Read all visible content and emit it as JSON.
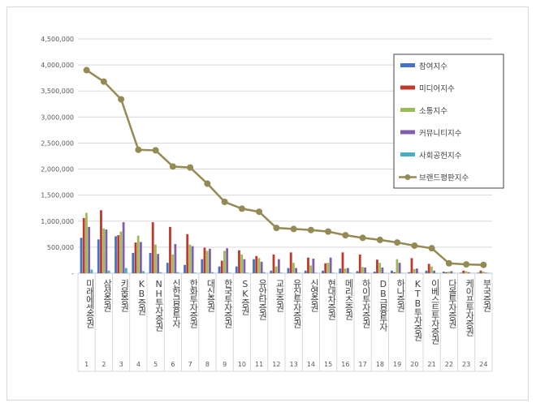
{
  "chart_data": {
    "type": "bar",
    "categories": [
      "미래에셋증권",
      "삼성증권",
      "키움증권",
      "KB증권",
      "NH투자증권",
      "신한금융투자",
      "한화투자증권",
      "대신증권",
      "한국투자증권",
      "SK증권",
      "유안타증권",
      "교보증권",
      "유진투자증권",
      "신영증권",
      "현대차증권",
      "메리츠증권",
      "하이투자증권",
      "DB금융투자",
      "하나증권",
      "KTB투자증권",
      "이베스트투자증권",
      "다올투자증권",
      "케이프투자증권",
      "부국증권"
    ],
    "ranks": [
      "1",
      "2",
      "3",
      "4",
      "5",
      "6",
      "7",
      "8",
      "9",
      "10",
      "11",
      "12",
      "13",
      "14",
      "15",
      "16",
      "17",
      "18",
      "19",
      "20",
      "21",
      "22",
      "23",
      "24"
    ],
    "ylim": [
      0,
      4500000
    ],
    "yticks": [
      "-",
      "500,000",
      "1,000,000",
      "1,500,000",
      "2,000,000",
      "2,500,000",
      "3,000,000",
      "3,500,000",
      "4,000,000",
      "4,500,000"
    ],
    "grid": true,
    "legend_position": "right",
    "series": [
      {
        "name": "참여지수",
        "kind": "bar",
        "color": "#4472c4",
        "values": [
          680000,
          650000,
          710000,
          390000,
          390000,
          200000,
          160000,
          270000,
          130000,
          130000,
          270000,
          50000,
          100000,
          50000,
          50000,
          90000,
          40000,
          30000,
          50000,
          20000,
          50000,
          30000,
          10000,
          10000
        ]
      },
      {
        "name": "미디어지수",
        "kind": "bar",
        "color": "#c0392b",
        "values": [
          1060000,
          1210000,
          730000,
          590000,
          980000,
          890000,
          750000,
          490000,
          240000,
          440000,
          330000,
          360000,
          400000,
          300000,
          190000,
          400000,
          360000,
          260000,
          20000,
          290000,
          180000,
          20000,
          50000,
          50000
        ]
      },
      {
        "name": "소통지수",
        "kind": "bar",
        "color": "#9bbb59",
        "values": [
          1160000,
          860000,
          800000,
          720000,
          550000,
          360000,
          550000,
          430000,
          430000,
          360000,
          290000,
          130000,
          200000,
          150000,
          200000,
          90000,
          120000,
          200000,
          270000,
          80000,
          130000,
          30000,
          40000,
          30000
        ]
      },
      {
        "name": "커뮤니티지수",
        "kind": "bar",
        "color": "#7f5fa9",
        "values": [
          890000,
          840000,
          980000,
          600000,
          370000,
          560000,
          520000,
          470000,
          480000,
          270000,
          220000,
          270000,
          100000,
          280000,
          300000,
          100000,
          110000,
          110000,
          200000,
          90000,
          50000,
          40000,
          20000,
          10000
        ]
      },
      {
        "name": "사회공헌지수",
        "kind": "bar",
        "color": "#4bacc6",
        "values": [
          70000,
          50000,
          100000,
          40000,
          20000,
          20000,
          10000,
          20000,
          10000,
          10000,
          20000,
          10000,
          10000,
          10000,
          10000,
          10000,
          10000,
          5000,
          5000,
          5000,
          5000,
          5000,
          5000,
          5000
        ]
      },
      {
        "name": "브랜드평판지수",
        "kind": "line",
        "color": "#948a54",
        "values": [
          3900000,
          3680000,
          3340000,
          2370000,
          2360000,
          2050000,
          2030000,
          1720000,
          1370000,
          1240000,
          1180000,
          870000,
          850000,
          830000,
          800000,
          730000,
          680000,
          640000,
          590000,
          530000,
          480000,
          190000,
          170000,
          160000
        ]
      }
    ]
  }
}
